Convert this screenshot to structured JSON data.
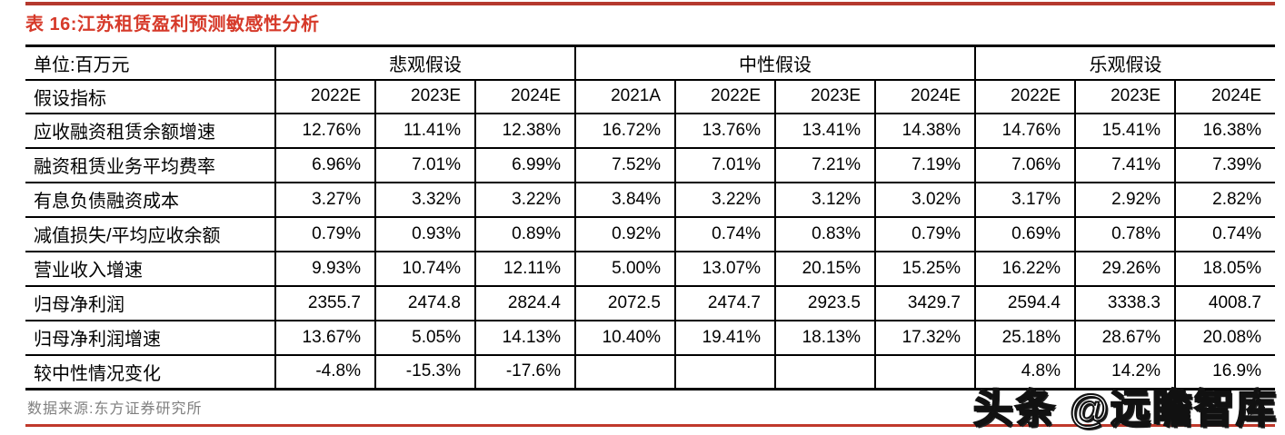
{
  "page": {
    "title": "表 16:江苏租赁盈利预测敏感性分析",
    "source": "数据来源:东方证券研究所",
    "watermark": "头条 @远瞻智库",
    "colors": {
      "title_red": "#d63a2a",
      "rule_red": "#c0392b",
      "source_gray": "#7f7f7f",
      "border_black": "#000000"
    }
  },
  "table": {
    "unit_label": "单位:百万元",
    "row_header_label": "假设指标",
    "groups": [
      {
        "label": "悲观假设",
        "col_span": 3
      },
      {
        "label": "中性假设",
        "col_span": 4
      },
      {
        "label": "乐观假设",
        "col_span": 3
      }
    ],
    "years": [
      "2022E",
      "2023E",
      "2024E",
      "2021A",
      "2022E",
      "2023E",
      "2024E",
      "2022E",
      "2023E",
      "2024E"
    ],
    "rows": [
      {
        "label": "应收融资租赁余额增速",
        "cells": [
          "12.76%",
          "11.41%",
          "12.38%",
          "16.72%",
          "13.76%",
          "13.41%",
          "14.38%",
          "14.76%",
          "15.41%",
          "16.38%"
        ]
      },
      {
        "label": "融资租赁业务平均费率",
        "cells": [
          "6.96%",
          "7.01%",
          "6.99%",
          "7.52%",
          "7.01%",
          "7.21%",
          "7.19%",
          "7.06%",
          "7.41%",
          "7.39%"
        ]
      },
      {
        "label": "有息负债融资成本",
        "cells": [
          "3.27%",
          "3.32%",
          "3.22%",
          "3.84%",
          "3.22%",
          "3.12%",
          "3.02%",
          "3.17%",
          "2.92%",
          "2.82%"
        ]
      },
      {
        "label": "减值损失/平均应收余额",
        "cells": [
          "0.79%",
          "0.93%",
          "0.89%",
          "0.92%",
          "0.74%",
          "0.83%",
          "0.79%",
          "0.69%",
          "0.78%",
          "0.74%"
        ]
      },
      {
        "label": "营业收入增速",
        "cells": [
          "9.93%",
          "10.74%",
          "12.11%",
          "5.00%",
          "13.07%",
          "20.15%",
          "15.25%",
          "16.22%",
          "29.26%",
          "18.05%"
        ]
      },
      {
        "label": "归母净利润",
        "cells": [
          "2355.7",
          "2474.8",
          "2824.4",
          "2072.5",
          "2474.7",
          "2923.5",
          "3429.7",
          "2594.4",
          "3338.3",
          "4008.7"
        ]
      },
      {
        "label": "归母净利润增速",
        "cells": [
          "13.67%",
          "5.05%",
          "14.13%",
          "10.40%",
          "19.41%",
          "18.13%",
          "17.32%",
          "25.18%",
          "28.67%",
          "20.08%"
        ]
      },
      {
        "label": "较中性情况变化",
        "cells": [
          "-4.8%",
          "-15.3%",
          "-17.6%",
          "",
          "",
          "",
          "",
          "4.8%",
          "14.2%",
          "16.9%"
        ]
      }
    ]
  }
}
